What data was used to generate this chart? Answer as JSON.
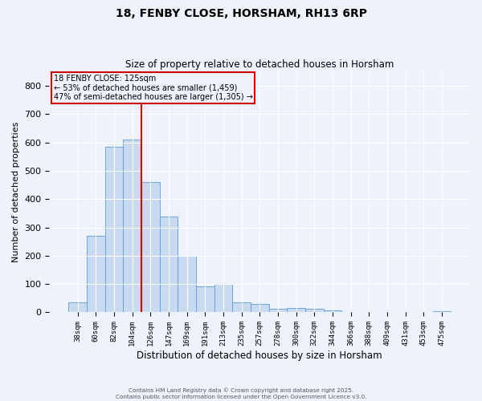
{
  "title1": "18, FENBY CLOSE, HORSHAM, RH13 6RP",
  "title2": "Size of property relative to detached houses in Horsham",
  "xlabel": "Distribution of detached houses by size in Horsham",
  "ylabel": "Number of detached properties",
  "categories": [
    "38sqm",
    "60sqm",
    "82sqm",
    "104sqm",
    "126sqm",
    "147sqm",
    "169sqm",
    "191sqm",
    "213sqm",
    "235sqm",
    "257sqm",
    "278sqm",
    "300sqm",
    "322sqm",
    "344sqm",
    "366sqm",
    "388sqm",
    "409sqm",
    "431sqm",
    "453sqm",
    "475sqm"
  ],
  "values": [
    35,
    270,
    585,
    610,
    460,
    338,
    200,
    92,
    100,
    35,
    30,
    12,
    15,
    13,
    8,
    2,
    0,
    0,
    0,
    0,
    5
  ],
  "bar_color": "#c9d9f0",
  "bar_edge_color": "#5b9bd5",
  "bar_width": 1.0,
  "vline_color": "#cc0000",
  "annotation_title": "18 FENBY CLOSE: 125sqm",
  "annotation_line1": "← 53% of detached houses are smaller (1,459)",
  "annotation_line2": "47% of semi-detached houses are larger (1,305) →",
  "annotation_box_color": "#cc0000",
  "ylim": [
    0,
    850
  ],
  "yticks": [
    0,
    100,
    200,
    300,
    400,
    500,
    600,
    700,
    800
  ],
  "background_color": "#eef2fb",
  "grid_color": "#ffffff",
  "footer1": "Contains HM Land Registry data © Crown copyright and database right 2025.",
  "footer2": "Contains public sector information licensed under the Open Government Licence v3.0."
}
